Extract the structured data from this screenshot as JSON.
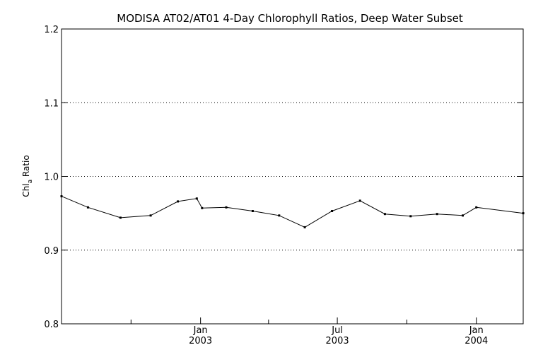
{
  "chart_data": {
    "type": "line",
    "title": "MODISA AT02/AT01 4-Day Chlorophyll Ratios, Deep Water Subset",
    "ylabel_main": "Chl",
    "ylabel_sub": "a",
    "ylabel_rest": " Ratio",
    "ylim": [
      0.8,
      1.2
    ],
    "yticks": [
      "0.8",
      "0.9",
      "1.0",
      "1.1",
      "1.2"
    ],
    "ytick_values": [
      0.8,
      0.9,
      1.0,
      1.1,
      1.2
    ],
    "gridlines_y": [
      0.9,
      1.0,
      1.1
    ],
    "xlim": [
      "2002-07-01",
      "2004-03-03"
    ],
    "minor_ticks_x": [
      "2002-10-01",
      "2003-04-01",
      "2003-10-01"
    ],
    "major_ticks_x": [
      {
        "date": "2003-01-01",
        "month": "Jan",
        "year": "2003"
      },
      {
        "date": "2003-07-01",
        "month": "Jul",
        "year": "2003"
      },
      {
        "date": "2004-01-01",
        "month": "Jan",
        "year": "2004"
      }
    ],
    "x": [
      "2002-07-01",
      "2002-08-05",
      "2002-09-17",
      "2002-10-27",
      "2002-12-02",
      "2002-12-27",
      "2003-01-03",
      "2003-02-04",
      "2003-03-11",
      "2003-04-15",
      "2003-05-19",
      "2003-06-24",
      "2003-07-31",
      "2003-09-02",
      "2003-10-06",
      "2003-11-10",
      "2003-12-14",
      "2004-01-01",
      "2004-03-03"
    ],
    "y": [
      0.973,
      0.958,
      0.944,
      0.947,
      0.966,
      0.97,
      0.957,
      0.958,
      0.953,
      0.947,
      0.931,
      0.953,
      0.967,
      0.949,
      0.946,
      0.949,
      0.947,
      0.958,
      0.95
    ]
  }
}
